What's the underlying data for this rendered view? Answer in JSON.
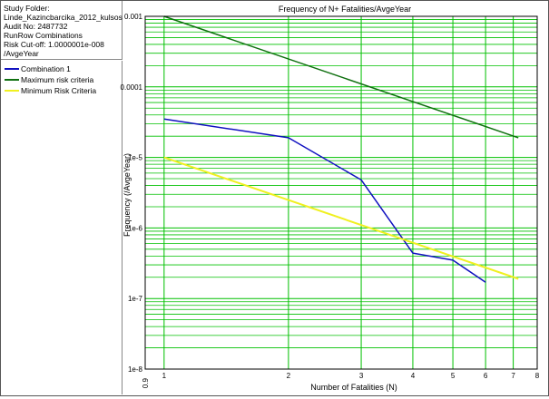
{
  "info": {
    "study_folder_label": "Study Folder:",
    "study_folder": "Linde_Kazincbarcika_2012_kulsos",
    "audit": "Audit No: 2487732",
    "runrow": "RunRow Combinations",
    "risk_cutoff": "Risk Cut-off: 1.0000001e-008",
    "risk_cutoff_unit": "/AvgeYear"
  },
  "chart_data": {
    "type": "line",
    "title": "Frequency of N+ Fatalities/AvgeYear",
    "xlabel": "Number of Fatalities (N)",
    "ylabel": "Frequency (/AvgeYear)",
    "x_scale": "log",
    "y_scale": "log",
    "xlim": [
      0.9,
      8
    ],
    "ylim": [
      1e-08,
      0.001
    ],
    "x_ticks": [
      {
        "value": 0.9,
        "label": "0.9"
      },
      {
        "value": 1,
        "label": "1"
      },
      {
        "value": 2,
        "label": "2"
      },
      {
        "value": 3,
        "label": "3"
      },
      {
        "value": 4,
        "label": "4"
      },
      {
        "value": 5,
        "label": "5"
      },
      {
        "value": 6,
        "label": "6"
      },
      {
        "value": 7,
        "label": "7"
      },
      {
        "value": 8,
        "label": "8"
      }
    ],
    "y_ticks": [
      {
        "value": 1e-08,
        "label": "1e-8"
      },
      {
        "value": 1e-07,
        "label": "1e-7"
      },
      {
        "value": 1e-06,
        "label": "1e-6"
      },
      {
        "value": 1e-05,
        "label": "1e-5"
      },
      {
        "value": 0.0001,
        "label": "0.0001"
      },
      {
        "value": 0.001,
        "label": "0.001"
      }
    ],
    "grid": true,
    "grid_color": "#00c000",
    "legend_position": "left panel",
    "series": [
      {
        "name": "Combination 1",
        "color": "#1010c0",
        "x": [
          1,
          2,
          3,
          4,
          5,
          6
        ],
        "y": [
          3.5e-05,
          1.9e-05,
          4.8e-06,
          4.4e-07,
          3.5e-07,
          1.7e-07
        ]
      },
      {
        "name": "Maximum risk criteria",
        "color": "#107010",
        "x": [
          1,
          7.2
        ],
        "y": [
          0.001,
          1.9e-05
        ]
      },
      {
        "name": "Minimum Risk Criteria",
        "color": "#f0f020",
        "x": [
          1,
          7.2
        ],
        "y": [
          1e-05,
          1.9e-07
        ]
      }
    ]
  }
}
